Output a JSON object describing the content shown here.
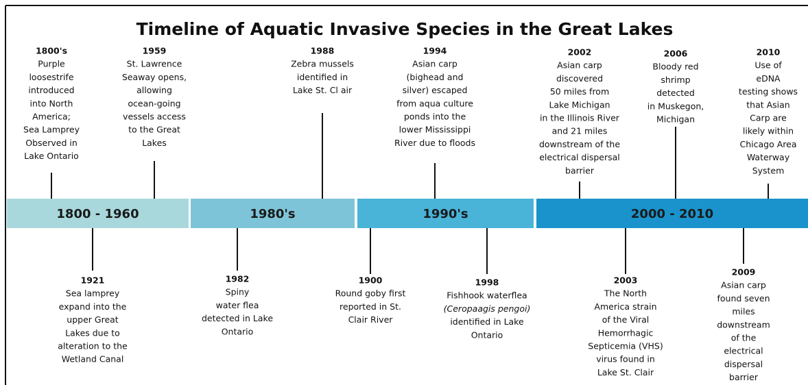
{
  "title": "Timeline of Aquatic Invasive Species in the Great Lakes",
  "bands": [
    "1800 - 1960",
    "1980's",
    "1990's",
    "2000 - 2010"
  ],
  "events_above": [
    {
      "year": "1800's",
      "lines": [
        "Purple",
        "loosestrife",
        "introduced",
        "into North",
        "America;",
        "Sea Lamprey",
        "Observed in",
        "Lake Ontario"
      ]
    },
    {
      "year": "1959",
      "lines": [
        "St. Lawrence",
        "Seaway opens,",
        "allowing",
        "ocean-going",
        "vessels access",
        "to the Great",
        "Lakes"
      ]
    },
    {
      "year": "1988",
      "lines": [
        "Zebra mussels",
        "identified in",
        "Lake St. Cl air"
      ]
    },
    {
      "year": "1994",
      "lines": [
        "Asian carp",
        "(bighead and",
        "silver) escaped",
        "from  aqua culture",
        "ponds into the",
        "lower Mississippi",
        "River due to floods"
      ]
    },
    {
      "year": "2002",
      "lines": [
        "Asian carp",
        "discovered",
        "50 miles from",
        "Lake Michigan",
        "in the Illinois River",
        "and 21 miles",
        "downstream of the",
        "electrical dispersal",
        "barrier"
      ]
    },
    {
      "year": "2006",
      "lines": [
        "Bloody red",
        "shrimp",
        "detected",
        "in Muskegon,",
        "Michigan"
      ]
    },
    {
      "year": "2010",
      "lines": [
        "Use of",
        "eDNA",
        "testing shows",
        "that Asian",
        "Carp are",
        "likely within",
        "Chicago Area",
        "Waterway",
        "System"
      ]
    }
  ],
  "events_below": [
    {
      "year": "1921",
      "lines": [
        "Sea lamprey",
        "expand into the",
        "upper Great",
        "Lakes due to",
        "alteration to the",
        "Wetland Canal"
      ]
    },
    {
      "year": "1982",
      "lines": [
        "Spiny",
        "water flea",
        "detected in Lake",
        "Ontario"
      ]
    },
    {
      "year": "1900",
      "lines": [
        "Round goby first",
        "reported in St.",
        "Clair River"
      ]
    },
    {
      "year": "1998",
      "lines": [
        "Fishhook waterflea",
        "(Ceropaagis pengoi)",
        "identified in Lake",
        "Ontario"
      ]
    },
    {
      "year": "2003",
      "lines": [
        "The North",
        "America strain",
        "of the Viral",
        "Hemorrhagic",
        "Septicemia (VHS)",
        "virus found in",
        "Lake St. Clair"
      ]
    },
    {
      "year": "2009",
      "lines": [
        "Asian carp",
        "found seven",
        "miles",
        "downstream",
        "of the",
        "electrical",
        "dispersal",
        "barrier"
      ]
    }
  ]
}
